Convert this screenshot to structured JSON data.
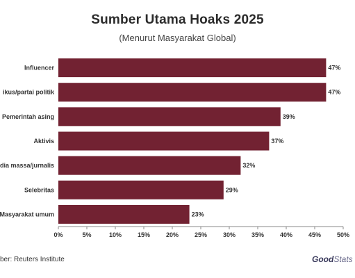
{
  "title": "Sumber Utama Hoaks 2025",
  "subtitle": "(Menurut Masyarakat Global)",
  "source": "ber: Reuters Institute",
  "logo": {
    "part1": "Good",
    "part2": "Stats"
  },
  "colors": {
    "bar": "#722232",
    "grid": "#cccccc",
    "axis": "#888888",
    "text": "#333333"
  },
  "chart_data": {
    "type": "bar",
    "orientation": "horizontal",
    "categories": [
      "Influencer",
      "ikus/partai politik",
      "Pemerintah asing",
      "Aktivis",
      "dia massa/jurnalis",
      "Selebritas",
      "Masyarakat umum"
    ],
    "values": [
      47,
      47,
      39,
      37,
      32,
      29,
      23
    ],
    "data_labels": [
      "47%",
      "47%",
      "39%",
      "37%",
      "32%",
      "29%",
      "23%"
    ],
    "xlim": [
      0,
      50
    ],
    "xticks": [
      0,
      5,
      10,
      15,
      20,
      25,
      30,
      35,
      40,
      45,
      50
    ],
    "xtick_labels": [
      "0%",
      "5%",
      "10%",
      "15%",
      "20%",
      "25%",
      "30%",
      "35%",
      "40%",
      "45%",
      "50%"
    ],
    "title": "Sumber Utama Hoaks 2025",
    "xlabel": "",
    "ylabel": "",
    "grid": false
  }
}
